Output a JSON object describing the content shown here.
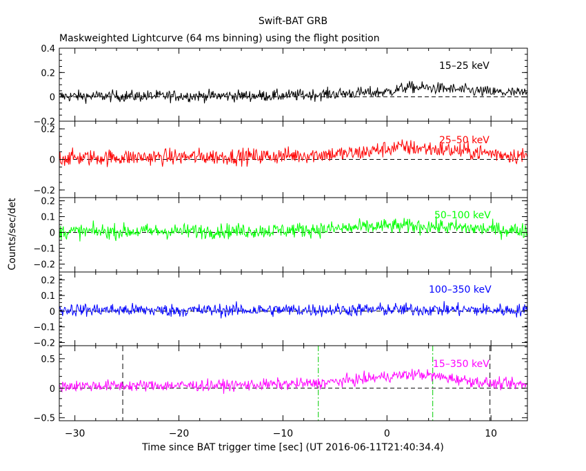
{
  "title": "Swift-BAT GRB",
  "subtitle": "Maskweighted Lightcurve (64 ms binning) using the flight position",
  "ylabel": "Counts/sec/det",
  "xlabel": "Time since BAT trigger time [sec] (UT 2016-06-11T21:40:34.4)",
  "chart_data": {
    "type": "line",
    "title": "Swift-BAT GRB",
    "subtitle": "Maskweighted Lightcurve (64 ms binning) using the flight position",
    "xlabel": "Time since BAT trigger time [sec] (UT 2016-06-11T21:40:34.4)",
    "ylabel": "Counts/sec/det",
    "xlim": [
      -31.5,
      13.5
    ],
    "x_ticks": [
      -30,
      -20,
      -10,
      0,
      10
    ],
    "x_tick_labels": [
      "−30",
      "−20",
      "−10",
      "0",
      "10"
    ],
    "bin_size_s": 0.064,
    "grid": false,
    "panels": [
      {
        "band": "15–25 keV",
        "color": "#000000",
        "ylim": [
          -0.2,
          0.4
        ],
        "y_ticks": [
          -0.2,
          0,
          0.2,
          0.4
        ],
        "y_tick_labels": [
          "−0.2",
          "0",
          "0.2",
          "0.4"
        ],
        "trend": [
          [
            -31.5,
            0.005
          ],
          [
            -10,
            0.01
          ],
          [
            0,
            0.04
          ],
          [
            2,
            0.08
          ],
          [
            5,
            0.07
          ],
          [
            10,
            0.04
          ],
          [
            13.5,
            0.03
          ]
        ],
        "noise_sigma": 0.04
      },
      {
        "band": "25–50 keV",
        "color": "#ff0000",
        "ylim": [
          -0.25,
          0.25
        ],
        "y_ticks": [
          -0.2,
          0,
          0.2
        ],
        "y_tick_labels": [
          "−0.2",
          "0",
          "0.2"
        ],
        "trend": [
          [
            -31.5,
            0.01
          ],
          [
            -12,
            0.02
          ],
          [
            -3,
            0.04
          ],
          [
            1,
            0.08
          ],
          [
            4,
            0.07
          ],
          [
            10,
            0.04
          ],
          [
            13.5,
            0.02
          ]
        ],
        "noise_sigma": 0.045
      },
      {
        "band": "50–100 keV",
        "color": "#00ff00",
        "ylim": [
          -0.25,
          0.22
        ],
        "y_ticks": [
          -0.2,
          -0.1,
          0,
          0.1,
          0.2
        ],
        "y_tick_labels": [
          "−0.2",
          "−0.1",
          "0",
          "0.1",
          "0.2"
        ],
        "trend": [
          [
            -31.5,
            0.005
          ],
          [
            -12,
            0.01
          ],
          [
            -6,
            0.02
          ],
          [
            0,
            0.04
          ],
          [
            4,
            0.04
          ],
          [
            10,
            0.02
          ],
          [
            13.5,
            0.01
          ]
        ],
        "noise_sigma": 0.04
      },
      {
        "band": "100–350 keV",
        "color": "#0000ff",
        "ylim": [
          -0.22,
          0.25
        ],
        "y_ticks": [
          -0.2,
          -0.1,
          0,
          0.1,
          0.2
        ],
        "y_tick_labels": [
          "−0.2",
          "−0.1",
          "0",
          "0.1",
          "0.2"
        ],
        "trend": [
          [
            -31.5,
            0.01
          ],
          [
            -20,
            0.005
          ],
          [
            0,
            0.01
          ],
          [
            5,
            0.01
          ],
          [
            13.5,
            0.005
          ]
        ],
        "noise_sigma": 0.035
      },
      {
        "band": "15–350 keV",
        "color": "#ff00ff",
        "ylim": [
          -0.55,
          0.72
        ],
        "y_ticks": [
          -0.5,
          0,
          0.5
        ],
        "y_tick_labels": [
          "−0.5",
          "0",
          "0.5"
        ],
        "trend": [
          [
            -31.5,
            0.04
          ],
          [
            -15,
            0.05
          ],
          [
            -7,
            0.08
          ],
          [
            -3,
            0.14
          ],
          [
            0,
            0.2
          ],
          [
            3,
            0.24
          ],
          [
            6,
            0.17
          ],
          [
            10,
            0.08
          ],
          [
            13.5,
            0.06
          ]
        ],
        "noise_sigma": 0.08,
        "vlines": [
          {
            "x": -25.4,
            "style": "dashed",
            "color": "#000000"
          },
          {
            "x": -6.6,
            "style": "dashdot",
            "color": "#00cc00"
          },
          {
            "x": 4.4,
            "style": "dashdot",
            "color": "#00cc00"
          },
          {
            "x": 9.9,
            "style": "dashed",
            "color": "#000000"
          }
        ]
      }
    ]
  }
}
